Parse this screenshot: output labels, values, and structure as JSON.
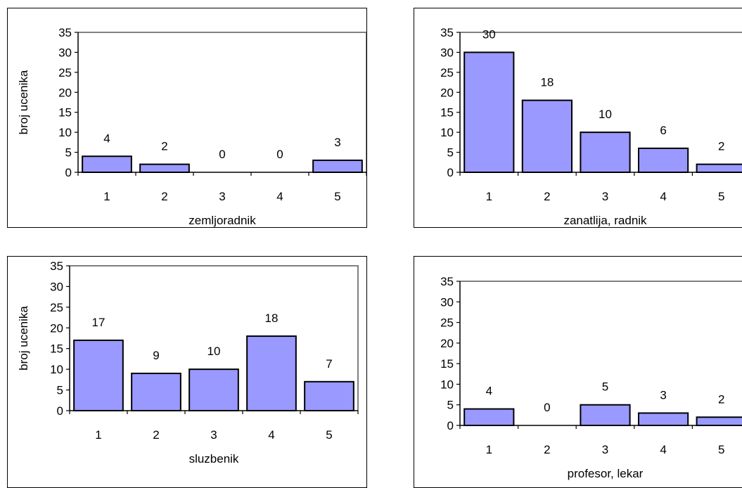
{
  "ylabel": "broj ucenika",
  "colors": {
    "bar": "#9999ff",
    "frame": "#808080"
  },
  "chart_data": [
    {
      "type": "bar",
      "title": "",
      "xlabel": "zemljoradnik",
      "ylabel": "broj ucenika",
      "categories": [
        "1",
        "2",
        "3",
        "4",
        "5"
      ],
      "values": [
        4,
        2,
        0,
        0,
        3
      ],
      "ylim": [
        0,
        35
      ],
      "yticks": [
        "0",
        "5",
        "10",
        "15",
        "20",
        "25",
        "30",
        "35"
      ],
      "data_labels": [
        "4",
        "2",
        "0",
        "0",
        "3"
      ],
      "grid": false,
      "legend": "none"
    },
    {
      "type": "bar",
      "title": "",
      "xlabel": "zanatlija, radnik",
      "ylabel": "",
      "categories": [
        "1",
        "2",
        "3",
        "4",
        "5"
      ],
      "values": [
        30,
        18,
        10,
        6,
        2
      ],
      "ylim": [
        0,
        35
      ],
      "yticks": [
        "0",
        "5",
        "10",
        "15",
        "20",
        "25",
        "30",
        "35"
      ],
      "data_labels": [
        "30",
        "18",
        "10",
        "6",
        "2"
      ],
      "grid": false,
      "legend": "none"
    },
    {
      "type": "bar",
      "title": "",
      "xlabel": "sluzbenik",
      "ylabel": "broj ucenika",
      "categories": [
        "1",
        "2",
        "3",
        "4",
        "5"
      ],
      "values": [
        17,
        9,
        10,
        18,
        7
      ],
      "ylim": [
        0,
        35
      ],
      "yticks": [
        "0",
        "5",
        "10",
        "15",
        "20",
        "25",
        "30",
        "35"
      ],
      "data_labels": [
        "17",
        "9",
        "10",
        "18",
        "7"
      ],
      "grid": false,
      "legend": "none"
    },
    {
      "type": "bar",
      "title": "",
      "xlabel": "profesor, lekar",
      "ylabel": "",
      "categories": [
        "1",
        "2",
        "3",
        "4",
        "5"
      ],
      "values": [
        4,
        0,
        5,
        3,
        2
      ],
      "ylim": [
        0,
        35
      ],
      "yticks": [
        "0",
        "5",
        "10",
        "15",
        "20",
        "25",
        "30",
        "35"
      ],
      "data_labels": [
        "4",
        "0",
        "5",
        "3",
        "2"
      ],
      "grid": false,
      "legend": "none"
    }
  ]
}
